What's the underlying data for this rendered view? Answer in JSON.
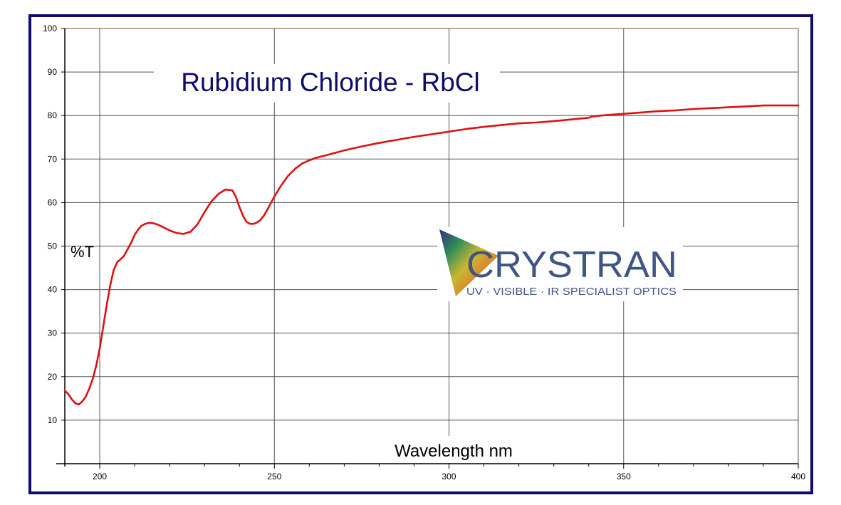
{
  "chart_data": {
    "type": "line",
    "title": "Rubidium Chloride - RbCl",
    "xlabel": "Wavelength nm",
    "ylabel": "%T",
    "xlim": [
      190,
      400
    ],
    "ylim": [
      0,
      100
    ],
    "x_ticks": [
      200,
      250,
      300,
      350,
      400
    ],
    "y_ticks": [
      10,
      20,
      30,
      40,
      50,
      60,
      70,
      80,
      90,
      100
    ],
    "grid": true,
    "colors": {
      "line": "#e01010",
      "title": "#0c0c6e",
      "frame": "#0c0c6e",
      "grid": "#555555"
    },
    "series": [
      {
        "x": [
          190,
          191,
          192,
          193,
          194,
          195,
          196,
          197,
          198,
          199,
          200,
          201,
          202,
          203,
          204,
          205,
          206,
          207,
          208,
          209,
          210,
          211,
          212,
          213,
          214,
          215,
          216,
          217,
          218,
          220,
          222,
          224,
          226,
          228,
          230,
          232,
          234,
          236,
          238,
          239,
          240,
          241,
          242,
          243,
          244,
          245,
          246,
          247,
          248,
          250,
          252,
          254,
          256,
          258,
          260,
          262,
          265,
          270,
          275,
          280,
          285,
          290,
          295,
          300,
          305,
          310,
          315,
          320,
          325,
          330,
          335,
          340,
          341,
          345,
          350,
          355,
          360,
          365,
          370,
          375,
          380,
          385,
          390,
          395,
          400
        ],
        "y": [
          16.8,
          16.0,
          14.8,
          13.9,
          13.6,
          14.3,
          15.4,
          17.2,
          19.5,
          22.5,
          26.5,
          31.5,
          36.5,
          41.0,
          44.5,
          46.3,
          47.0,
          47.8,
          49.3,
          50.8,
          52.6,
          53.8,
          54.7,
          55.1,
          55.3,
          55.3,
          55.1,
          54.8,
          54.4,
          53.6,
          53.0,
          52.8,
          53.3,
          55.0,
          57.8,
          60.3,
          62.0,
          63.0,
          62.8,
          61.3,
          59.0,
          57.0,
          55.6,
          55.1,
          55.1,
          55.4,
          56.0,
          57.0,
          58.4,
          61.4,
          64.0,
          66.2,
          67.8,
          69.0,
          69.7,
          70.3,
          70.9,
          72.0,
          72.9,
          73.7,
          74.4,
          75.1,
          75.7,
          76.3,
          76.9,
          77.4,
          77.8,
          78.2,
          78.4,
          78.7,
          79.1,
          79.5,
          79.8,
          80.1,
          80.4,
          80.7,
          81.0,
          81.2,
          81.5,
          81.7,
          81.9,
          82.1,
          82.3,
          82.3,
          82.3
        ]
      }
    ]
  },
  "logo": {
    "name": "CRYSTRAN",
    "tagline": "UV · VISIBLE · IR SPECIALIST OPTICS",
    "text_color": "#3f5583"
  }
}
